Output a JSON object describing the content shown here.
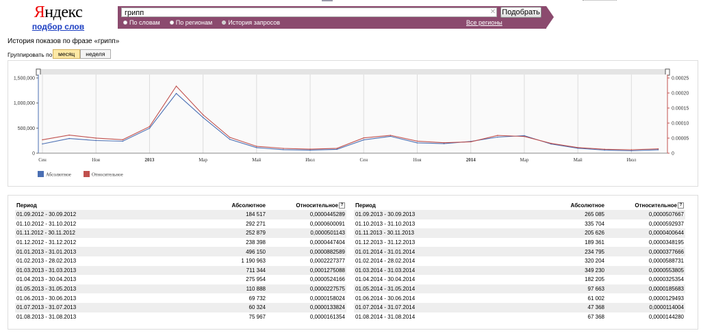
{
  "logo": {
    "word_first": "Я",
    "word_rest": "ндекс",
    "subtitle": "подбор слов"
  },
  "search": {
    "value": "грипп",
    "button": "Подобрать",
    "modes": [
      "По словам",
      "По регионам",
      "История запросов"
    ],
    "active_mode": 2,
    "regions": "Все регионы"
  },
  "page": {
    "title": "История показов по фразе «грипп»",
    "group_label": "Группировать по:",
    "group_month": "месяц",
    "group_week": "неделя"
  },
  "colors": {
    "absolute": "#4a6fb3",
    "relative": "#c0504d",
    "header": "#8b4a6e"
  },
  "chart_data": {
    "type": "line",
    "x": [
      "2012-09",
      "2012-10",
      "2012-11",
      "2012-12",
      "2013-01",
      "2013-02",
      "2013-03",
      "2013-04",
      "2013-05",
      "2013-06",
      "2013-07",
      "2013-08",
      "2013-09",
      "2013-10",
      "2013-11",
      "2013-12",
      "2014-01",
      "2014-02",
      "2014-03",
      "2014-04",
      "2014-05",
      "2014-06",
      "2014-07",
      "2014-08"
    ],
    "x_tick_labels": [
      "Сен",
      "Ноя",
      "2013",
      "Мар",
      "Май",
      "Июл",
      "Сен",
      "Ноя",
      "2014",
      "Мар",
      "Май",
      "Июл"
    ],
    "series": [
      {
        "name": "Абсолютное",
        "axis": "left",
        "color": "#4a6fb3",
        "values": [
          184517,
          292271,
          252879,
          238398,
          496150,
          1190963,
          711344,
          275954,
          110888,
          69732,
          60324,
          75967,
          265085,
          335704,
          205626,
          189361,
          234795,
          320204,
          349230,
          182205,
          97663,
          61002,
          47368,
          67368
        ]
      },
      {
        "name": "Относительное",
        "axis": "right",
        "color": "#c0504d",
        "values": [
          4.45289e-05,
          6.00091e-05,
          5.01143e-05,
          4.47404e-05,
          8.82589e-05,
          0.0002227377,
          0.0001275088,
          5.24166e-05,
          2.27575e-05,
          1.58024e-05,
          1.33824e-05,
          1.61354e-05,
          5.07667e-05,
          5.92937e-05,
          4.00644e-05,
          3.48195e-05,
          3.77666e-05,
          5.88731e-05,
          5.53805e-05,
          3.25354e-05,
          1.85683e-05,
          1.29493e-05,
          1.14004e-05,
          1.4428e-05
        ]
      }
    ],
    "y_left_ticks": [
      "1,500,000",
      "1,000,000",
      "500,000",
      "0"
    ],
    "y_left_range": [
      0,
      1500000
    ],
    "y_right_ticks": [
      "0.00025",
      "0.00020",
      "0.00015",
      "0.00010",
      "0.00005",
      "0"
    ],
    "y_right_range": [
      0,
      0.00025
    ],
    "grid": true,
    "legend": "bottom-left"
  },
  "table": {
    "headers": {
      "period": "Период",
      "absolute": "Абсолютное",
      "relative": "Относительное"
    },
    "left": [
      {
        "period": "01.09.2012 - 30.09.2012",
        "abs": "184 517",
        "rel": "0,0000445289"
      },
      {
        "period": "01.10.2012 - 31.10.2012",
        "abs": "292 271",
        "rel": "0,0000600091"
      },
      {
        "period": "01.11.2012 - 30.11.2012",
        "abs": "252 879",
        "rel": "0,0000501143"
      },
      {
        "period": "01.12.2012 - 31.12.2012",
        "abs": "238 398",
        "rel": "0,0000447404"
      },
      {
        "period": "01.01.2013 - 31.01.2013",
        "abs": "496 150",
        "rel": "0,0000882589"
      },
      {
        "period": "01.02.2013 - 28.02.2013",
        "abs": "1 190 963",
        "rel": "0,0002227377"
      },
      {
        "period": "01.03.2013 - 31.03.2013",
        "abs": "711 344",
        "rel": "0,0001275088"
      },
      {
        "period": "01.04.2013 - 30.04.2013",
        "abs": "275 954",
        "rel": "0,0000524166"
      },
      {
        "period": "01.05.2013 - 31.05.2013",
        "abs": "110 888",
        "rel": "0,0000227575"
      },
      {
        "period": "01.06.2013 - 30.06.2013",
        "abs": "69 732",
        "rel": "0,0000158024"
      },
      {
        "period": "01.07.2013 - 31.07.2013",
        "abs": "60 324",
        "rel": "0,0000133824"
      },
      {
        "period": "01.08.2013 - 31.08.2013",
        "abs": "75 967",
        "rel": "0,0000161354"
      }
    ],
    "right": [
      {
        "period": "01.09.2013 - 30.09.2013",
        "abs": "265 085",
        "rel": "0,0000507667"
      },
      {
        "period": "01.10.2013 - 31.10.2013",
        "abs": "335 704",
        "rel": "0,0000592937"
      },
      {
        "period": "01.11.2013 - 30.11.2013",
        "abs": "205 626",
        "rel": "0,0000400644"
      },
      {
        "period": "01.12.2013 - 31.12.2013",
        "abs": "189 361",
        "rel": "0,0000348195"
      },
      {
        "period": "01.01.2014 - 31.01.2014",
        "abs": "234 795",
        "rel": "0,0000377666"
      },
      {
        "period": "01.02.2014 - 28.02.2014",
        "abs": "320 204",
        "rel": "0,0000588731"
      },
      {
        "period": "01.03.2014 - 31.03.2014",
        "abs": "349 230",
        "rel": "0,0000553805"
      },
      {
        "period": "01.04.2014 - 30.04.2014",
        "abs": "182 205",
        "rel": "0,0000325354"
      },
      {
        "period": "01.05.2014 - 31.05.2014",
        "abs": "97 663",
        "rel": "0,0000185683"
      },
      {
        "period": "01.06.2014 - 30.06.2014",
        "abs": "61 002",
        "rel": "0,0000129493"
      },
      {
        "period": "01.07.2014 - 31.07.2014",
        "abs": "47 368",
        "rel": "0,0000114004"
      },
      {
        "period": "01.08.2014 - 31.08.2014",
        "abs": "67 368",
        "rel": "0,0000144280"
      }
    ]
  }
}
